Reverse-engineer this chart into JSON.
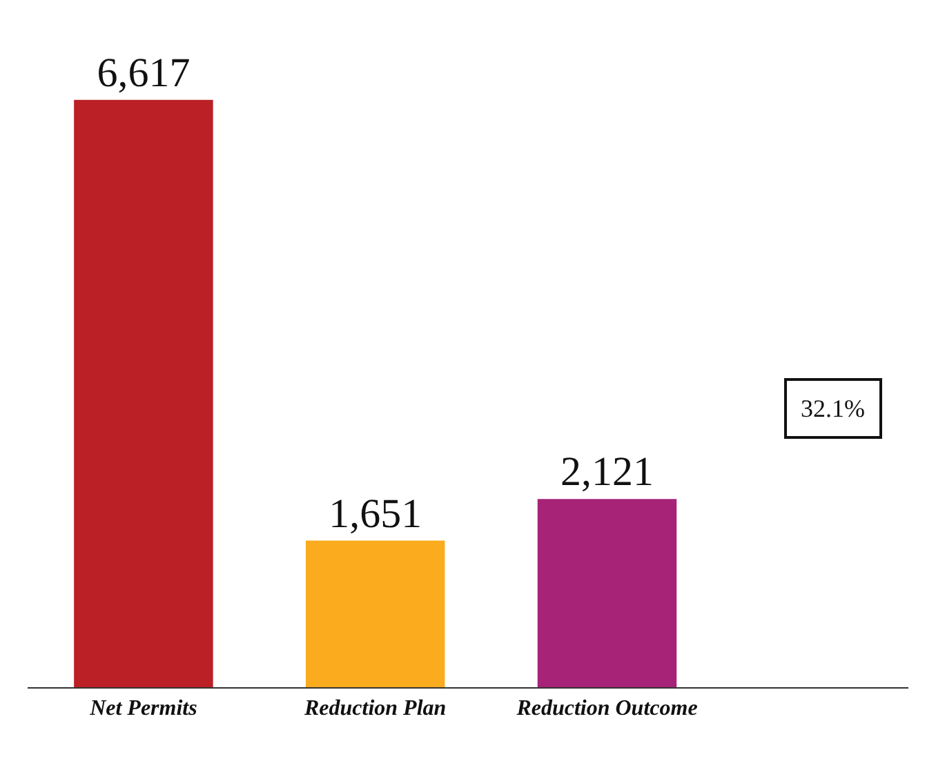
{
  "chart_data": {
    "type": "bar",
    "categories": [
      "Net Permits",
      "Reduction Plan",
      "Reduction Outcome"
    ],
    "values": [
      6617,
      1651,
      2121
    ],
    "colors": [
      "#bb2026",
      "#fbab1e",
      "#a62378"
    ],
    "value_labels": [
      "6,617",
      "1,651",
      "2,121"
    ],
    "annotations": [
      "32.1%"
    ]
  }
}
